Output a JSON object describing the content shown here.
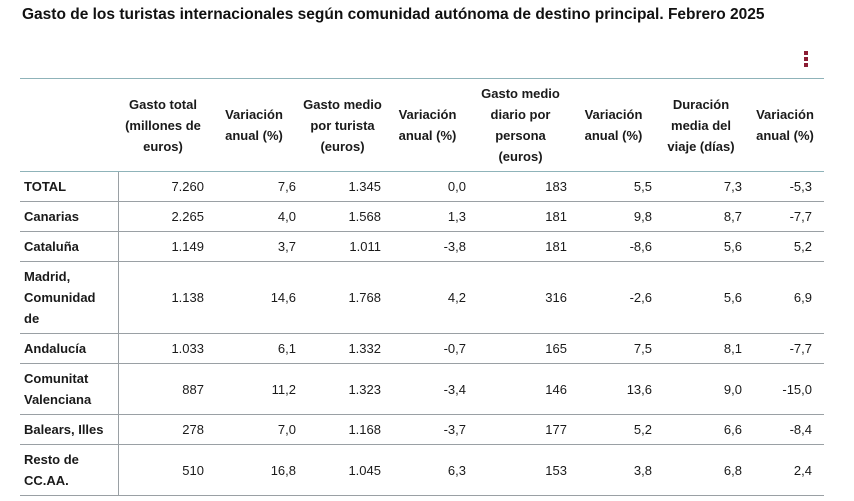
{
  "title": "Gasto de los turistas internacionales según comunidad autónoma de destino principal. Febrero 2025",
  "menu_icon": "vertical-ellipsis-icon",
  "accent_color": "#8b1c34",
  "chart_data": {
    "type": "table",
    "columns": [
      "",
      "Gasto total (millones de euros)",
      "Variación anual (%)",
      "Gasto medio por turista (euros)",
      "Variación anual (%)",
      "Gasto medio diario por persona (euros)",
      "Variación anual (%)",
      "Duración media del viaje (días)",
      "Variación anual (%)"
    ],
    "rows": [
      {
        "label": "TOTAL",
        "values": [
          "7.260",
          "7,6",
          "1.345",
          "0,0",
          "183",
          "5,5",
          "7,3",
          "-5,3"
        ]
      },
      {
        "label": "Canarias",
        "values": [
          "2.265",
          "4,0",
          "1.568",
          "1,3",
          "181",
          "9,8",
          "8,7",
          "-7,7"
        ]
      },
      {
        "label": "Cataluña",
        "values": [
          "1.149",
          "3,7",
          "1.011",
          "-3,8",
          "181",
          "-8,6",
          "5,6",
          "5,2"
        ]
      },
      {
        "label": "Madrid, Comunidad de",
        "values": [
          "1.138",
          "14,6",
          "1.768",
          "4,2",
          "316",
          "-2,6",
          "5,6",
          "6,9"
        ]
      },
      {
        "label": "Andalucía",
        "values": [
          "1.033",
          "6,1",
          "1.332",
          "-0,7",
          "165",
          "7,5",
          "8,1",
          "-7,7"
        ]
      },
      {
        "label": "Comunitat Valenciana",
        "values": [
          "887",
          "11,2",
          "1.323",
          "-3,4",
          "146",
          "13,6",
          "9,0",
          "-15,0"
        ]
      },
      {
        "label": "Balears, Illes",
        "values": [
          "278",
          "7,0",
          "1.168",
          "-3,7",
          "177",
          "5,2",
          "6,6",
          "-8,4"
        ]
      },
      {
        "label": "Resto de CC.AA.",
        "values": [
          "510",
          "16,8",
          "1.045",
          "6,3",
          "153",
          "3,8",
          "6,8",
          "2,4"
        ]
      }
    ]
  }
}
